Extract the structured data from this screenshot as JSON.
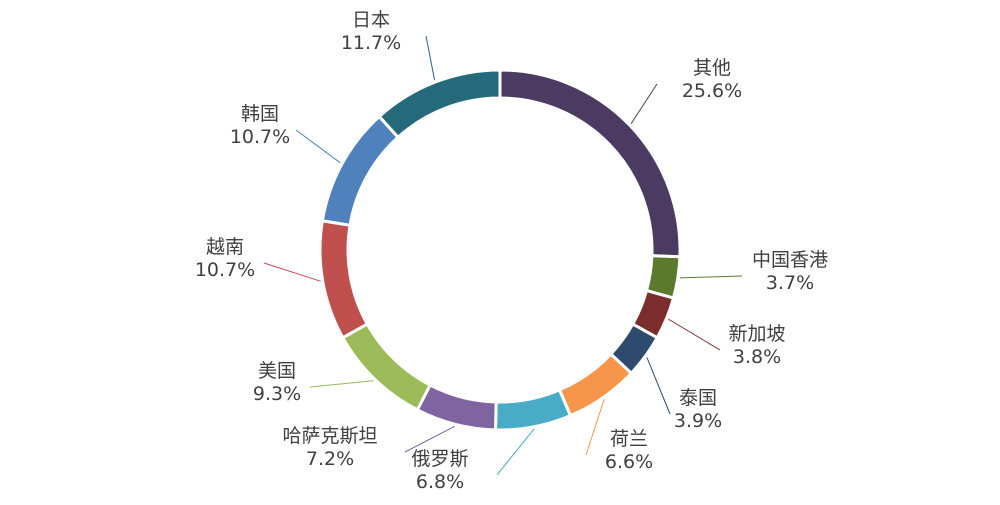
{
  "chart_data": {
    "type": "pie",
    "title": "",
    "subtitle": "",
    "slices": [
      {
        "label": "其他",
        "value": 25.6,
        "display": "25.6%",
        "color": "#4B3A61"
      },
      {
        "label": "中国香港",
        "value": 3.7,
        "display": "3.7%",
        "color": "#5C7A2E"
      },
      {
        "label": "新加坡",
        "value": 3.8,
        "display": "3.8%",
        "color": "#7B2C2C"
      },
      {
        "label": "泰国",
        "value": 3.9,
        "display": "3.9%",
        "color": "#2E4B6E"
      },
      {
        "label": "荷兰",
        "value": 6.6,
        "display": "6.6%",
        "color": "#F7954A"
      },
      {
        "label": "俄罗斯",
        "value": 6.8,
        "display": "6.8%",
        "color": "#49ACC7"
      },
      {
        "label": "哈萨克斯坦",
        "value": 7.2,
        "display": "7.2%",
        "color": "#8064A2"
      },
      {
        "label": "美国",
        "value": 9.3,
        "display": "9.3%",
        "color": "#9BBB59"
      },
      {
        "label": "越南",
        "value": 10.7,
        "display": "10.7%",
        "color": "#C0504D"
      },
      {
        "label": "韩国",
        "value": 10.7,
        "display": "10.7%",
        "color": "#4F81BD"
      },
      {
        "label": "日本",
        "value": 11.7,
        "display": "11.7%",
        "color": "#256A7A"
      }
    ]
  }
}
